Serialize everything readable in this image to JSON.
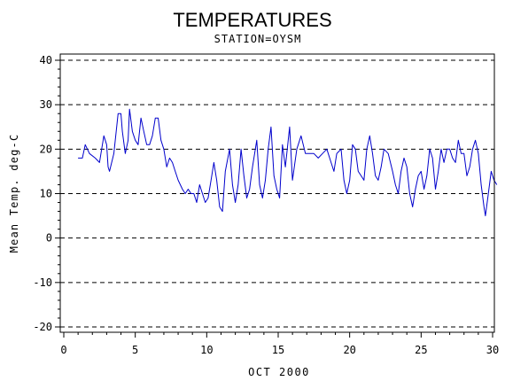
{
  "chart_data": {
    "type": "line",
    "title": "TEMPERATURES",
    "subtitle": "STATION=OYSM",
    "xlabel": "OCT 2000",
    "ylabel": "Mean Temp. deg-C",
    "xlim": [
      0,
      30
    ],
    "ylim": [
      -20,
      40
    ],
    "x_ticks": [
      0,
      5,
      10,
      15,
      20,
      25,
      30
    ],
    "x_tick_labels": [
      "0",
      "5",
      "10",
      "15",
      "20",
      "25",
      "30"
    ],
    "y_ticks": [
      -20,
      -10,
      0,
      10,
      20,
      30,
      40
    ],
    "y_tick_labels": [
      "-20",
      "-10",
      "0",
      "10",
      "20",
      "30",
      "40"
    ],
    "gridlines": "horizontal dashed at major y ticks",
    "line_color": "#0000cc",
    "series": [
      {
        "values": [
          [
            1.0,
            18
          ],
          [
            1.3,
            18
          ],
          [
            1.5,
            21
          ],
          [
            1.8,
            19
          ],
          [
            2.2,
            18
          ],
          [
            2.5,
            17
          ],
          [
            2.8,
            23
          ],
          [
            3.0,
            21
          ],
          [
            3.1,
            16
          ],
          [
            3.2,
            15
          ],
          [
            3.5,
            19
          ],
          [
            3.8,
            28
          ],
          [
            4.0,
            28
          ],
          [
            4.1,
            24
          ],
          [
            4.3,
            19
          ],
          [
            4.5,
            22
          ],
          [
            4.6,
            29
          ],
          [
            4.8,
            24
          ],
          [
            5.0,
            22
          ],
          [
            5.2,
            21
          ],
          [
            5.4,
            27
          ],
          [
            5.6,
            24
          ],
          [
            5.8,
            21
          ],
          [
            6.0,
            21
          ],
          [
            6.2,
            23
          ],
          [
            6.4,
            27
          ],
          [
            6.6,
            27
          ],
          [
            6.8,
            22
          ],
          [
            7.0,
            20
          ],
          [
            7.2,
            16
          ],
          [
            7.4,
            18
          ],
          [
            7.6,
            17
          ],
          [
            7.8,
            15
          ],
          [
            8.0,
            13
          ],
          [
            8.3,
            11
          ],
          [
            8.5,
            10
          ],
          [
            8.7,
            11
          ],
          [
            8.9,
            10
          ],
          [
            9.1,
            10
          ],
          [
            9.3,
            8
          ],
          [
            9.5,
            12
          ],
          [
            9.7,
            10
          ],
          [
            9.9,
            8
          ],
          [
            10.1,
            9
          ],
          [
            10.3,
            13
          ],
          [
            10.5,
            17
          ],
          [
            10.7,
            13
          ],
          [
            10.9,
            7
          ],
          [
            11.1,
            6
          ],
          [
            11.3,
            15
          ],
          [
            11.6,
            20
          ],
          [
            11.8,
            12
          ],
          [
            12.0,
            8
          ],
          [
            12.2,
            12
          ],
          [
            12.4,
            20
          ],
          [
            12.6,
            14
          ],
          [
            12.8,
            9
          ],
          [
            13.0,
            11
          ],
          [
            13.2,
            16
          ],
          [
            13.5,
            22
          ],
          [
            13.7,
            12
          ],
          [
            13.9,
            9
          ],
          [
            14.1,
            13
          ],
          [
            14.3,
            20
          ],
          [
            14.5,
            25
          ],
          [
            14.7,
            14
          ],
          [
            14.9,
            11
          ],
          [
            15.1,
            9
          ],
          [
            15.3,
            21
          ],
          [
            15.5,
            16
          ],
          [
            15.8,
            25
          ],
          [
            16.0,
            13
          ],
          [
            16.3,
            20
          ],
          [
            16.6,
            23
          ],
          [
            16.9,
            19
          ],
          [
            17.2,
            19
          ],
          [
            17.5,
            19
          ],
          [
            17.8,
            18
          ],
          [
            18.1,
            19
          ],
          [
            18.4,
            20
          ],
          [
            18.7,
            17
          ],
          [
            18.9,
            15
          ],
          [
            19.1,
            19
          ],
          [
            19.4,
            20
          ],
          [
            19.6,
            13
          ],
          [
            19.8,
            10
          ],
          [
            20.0,
            13
          ],
          [
            20.2,
            21
          ],
          [
            20.4,
            20
          ],
          [
            20.6,
            15
          ],
          [
            20.8,
            14
          ],
          [
            21.0,
            13
          ],
          [
            21.2,
            20
          ],
          [
            21.4,
            23
          ],
          [
            21.6,
            19
          ],
          [
            21.8,
            14
          ],
          [
            22.0,
            13
          ],
          [
            22.2,
            16
          ],
          [
            22.4,
            20
          ],
          [
            22.7,
            19
          ],
          [
            23.0,
            15
          ],
          [
            23.2,
            12
          ],
          [
            23.4,
            10
          ],
          [
            23.6,
            15
          ],
          [
            23.8,
            18
          ],
          [
            24.0,
            16
          ],
          [
            24.2,
            10
          ],
          [
            24.4,
            7
          ],
          [
            24.6,
            11
          ],
          [
            24.8,
            14
          ],
          [
            25.0,
            15
          ],
          [
            25.2,
            11
          ],
          [
            25.4,
            14
          ],
          [
            25.6,
            20
          ],
          [
            25.8,
            18
          ],
          [
            26.0,
            11
          ],
          [
            26.2,
            15
          ],
          [
            26.4,
            20
          ],
          [
            26.6,
            17
          ],
          [
            26.8,
            20
          ],
          [
            27.0,
            20
          ],
          [
            27.2,
            18
          ],
          [
            27.4,
            17
          ],
          [
            27.6,
            22
          ],
          [
            27.8,
            19
          ],
          [
            28.0,
            19
          ],
          [
            28.2,
            14
          ],
          [
            28.4,
            16
          ],
          [
            28.6,
            20
          ],
          [
            28.8,
            22
          ],
          [
            29.0,
            19
          ],
          [
            29.2,
            12
          ],
          [
            29.4,
            7
          ],
          [
            29.5,
            5
          ],
          [
            29.7,
            10
          ],
          [
            29.9,
            15
          ],
          [
            30.1,
            13
          ],
          [
            30.3,
            12
          ]
        ]
      }
    ]
  }
}
